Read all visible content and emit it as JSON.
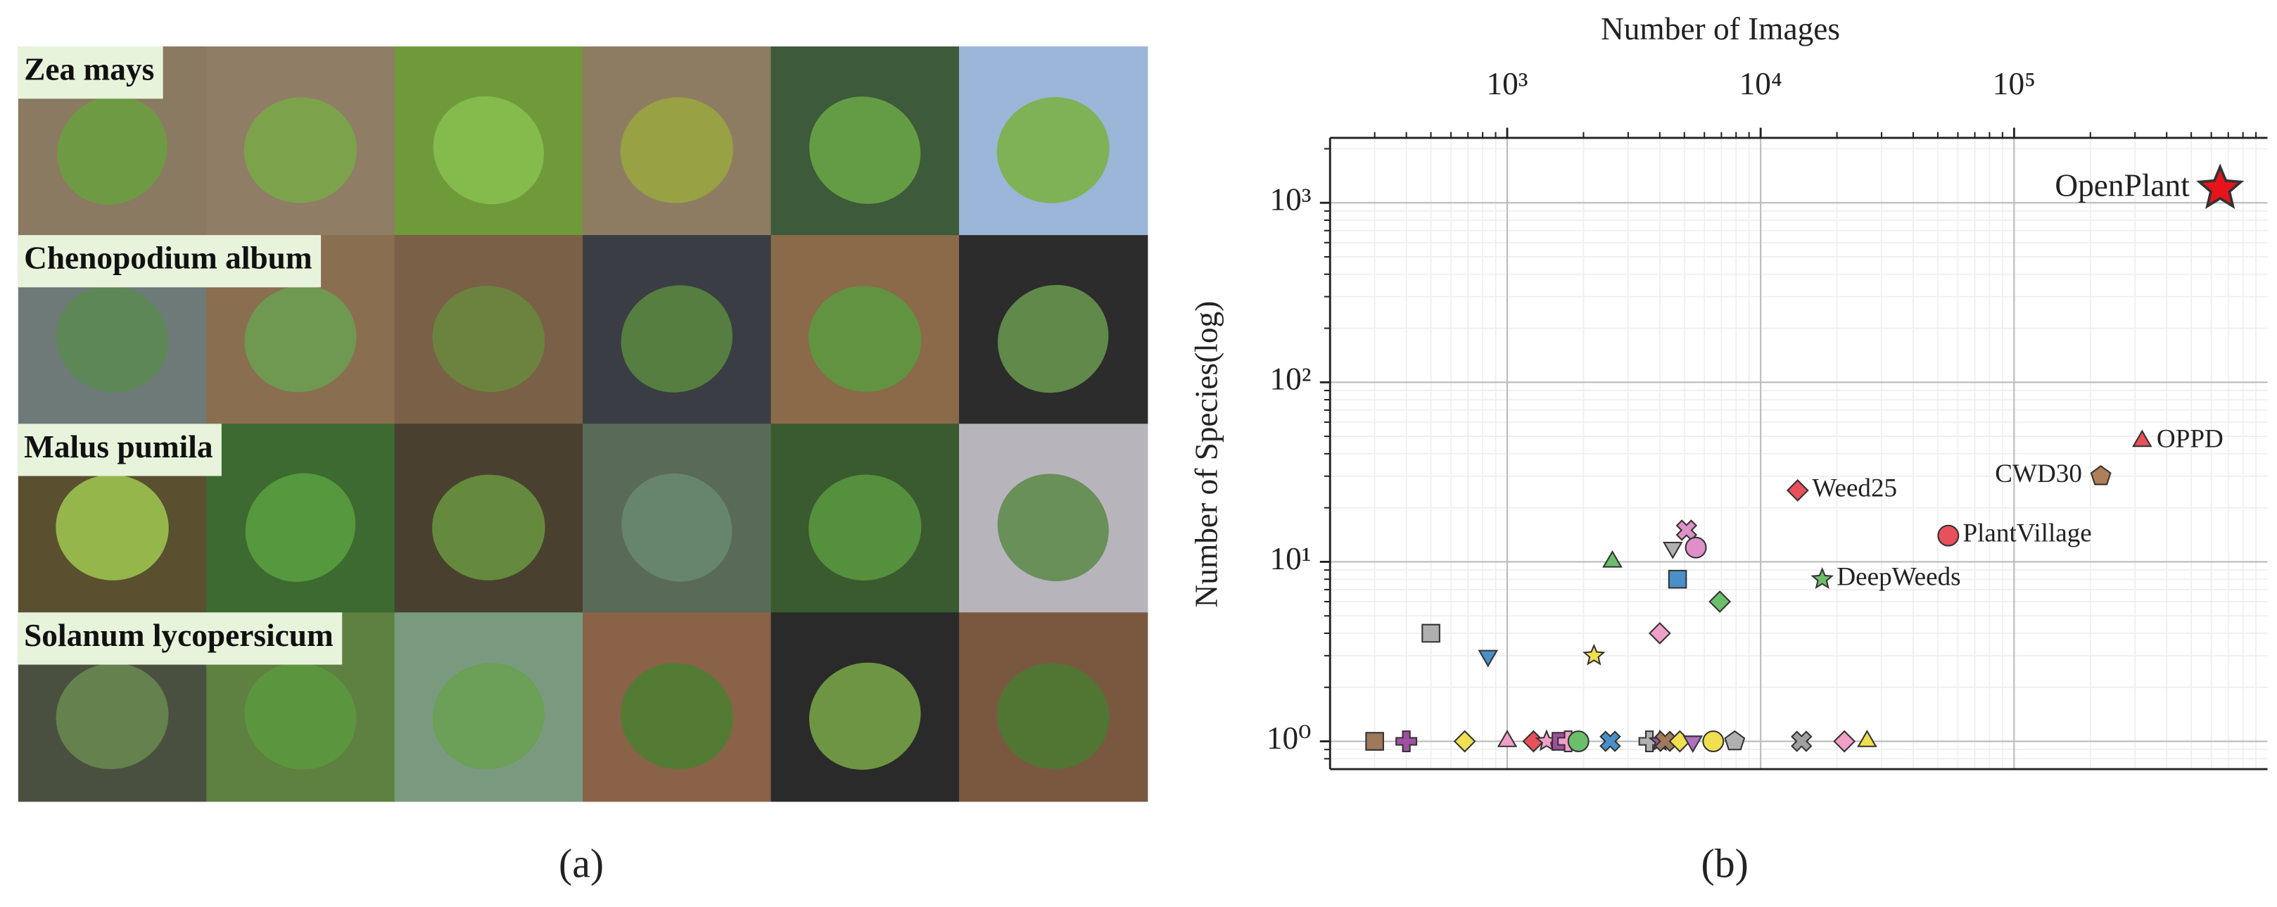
{
  "image_grid": {
    "species": [
      "Zea mays",
      "Chenopodium album",
      "Malus pumila",
      "Solanum lycopersicum"
    ],
    "caption": "(a)"
  },
  "chart_data": {
    "type": "scatter",
    "caption": "(b)",
    "x_label": "Number of Images",
    "y_label": "Number of Species(log)",
    "x_scale": "log",
    "y_scale": "log",
    "grid": true,
    "xlim": [
      200,
      1000000
    ],
    "ylim": [
      0.7,
      2300
    ],
    "xticks": [
      {
        "value": 1000,
        "label": "10³"
      },
      {
        "value": 10000,
        "label": "10⁴"
      },
      {
        "value": 100000,
        "label": "10⁵"
      }
    ],
    "yticks": [
      {
        "value": 1,
        "label": "10⁰"
      },
      {
        "value": 10,
        "label": "10¹"
      },
      {
        "value": 100,
        "label": "10²"
      },
      {
        "value": 1000,
        "label": "10³"
      }
    ],
    "xminorticks": [
      300,
      400,
      500,
      600,
      700,
      800,
      900,
      2000,
      3000,
      4000,
      5000,
      6000,
      7000,
      8000,
      9000,
      20000,
      30000,
      40000,
      50000,
      60000,
      70000,
      80000,
      90000,
      200000,
      300000,
      400000,
      500000,
      600000,
      700000,
      800000,
      900000
    ],
    "yminorticks": [
      0.8,
      0.9,
      2,
      3,
      4,
      5,
      6,
      7,
      8,
      9,
      20,
      30,
      40,
      50,
      60,
      70,
      80,
      90,
      200,
      300,
      400,
      500,
      600,
      700,
      800,
      900,
      2000
    ],
    "x": [
      650000,
      320000,
      220000,
      14000,
      55000,
      17500,
      500,
      840,
      2200,
      2600,
      4000,
      4500,
      5100,
      5550,
      4700,
      6900,
      300,
      400,
      680,
      1000,
      1270,
      1430,
      1630,
      1740,
      1910,
      2550,
      3640,
      4000,
      4200,
      4800,
      5400,
      6500,
      7900,
      14500,
      21400,
      26300
    ],
    "values": [
      1200,
      47,
      30,
      25,
      14,
      8,
      4,
      3,
      3,
      10,
      4,
      12,
      15,
      12,
      8,
      6,
      1,
      1,
      1,
      1,
      1,
      1,
      1,
      1,
      1,
      1,
      1,
      1,
      1,
      1,
      1,
      1,
      1,
      1,
      1,
      1
    ],
    "point_labels": [
      "OpenPlant",
      "OPPD",
      "CWD30",
      "Weed25",
      "PlantVillage",
      "DeepWeeds",
      null,
      null,
      null,
      null,
      null,
      null,
      null,
      null,
      null,
      null,
      null,
      null,
      null,
      null,
      null,
      null,
      null,
      null,
      null,
      null,
      null,
      null,
      null,
      null,
      null,
      null,
      null,
      null,
      null,
      null
    ],
    "markers": [
      "star",
      "triangle",
      "pentagon",
      "diamond",
      "circle",
      "star",
      "square",
      "triangle-down",
      "star",
      "triangle",
      "diamond",
      "triangle-down",
      "x",
      "circle",
      "square",
      "diamond",
      "square",
      "plus",
      "diamond",
      "triangle",
      "diamond",
      "star",
      "square",
      "plus",
      "circle",
      "x",
      "plus",
      "star",
      "x",
      "diamond",
      "triangle-down",
      "circle",
      "pentagon",
      "x",
      "diamond",
      "triangle"
    ],
    "colors": [
      "#e8141c",
      "#e8505b",
      "#b07f58",
      "#e8505b",
      "#e8505b",
      "#6cbf6a",
      "#b0b0b0",
      "#4a90c8",
      "#f0e050",
      "#6cbf6a",
      "#f0a0c8",
      "#b0b0b0",
      "#e090c8",
      "#e090c8",
      "#4a90c8",
      "#6cbf6a",
      "#a0785a",
      "#a050a0",
      "#f0e050",
      "#f0a0c8",
      "#e8505b",
      "#f0a0c8",
      "#a050a0",
      "#f0a0c8",
      "#6cbf6a",
      "#4a90c8",
      "#b0b0b0",
      "#a050a0",
      "#a0785a",
      "#f0e050",
      "#b070c0",
      "#f0e050",
      "#b0b0b0",
      "#a0a0a0",
      "#f0a0c8",
      "#f0e050"
    ]
  }
}
